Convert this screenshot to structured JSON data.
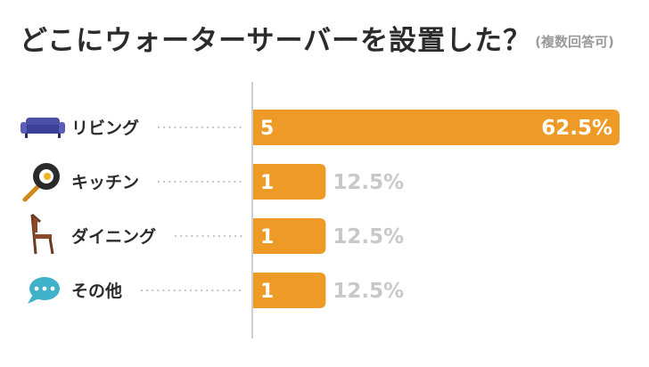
{
  "chart_data": {
    "type": "bar",
    "orientation": "horizontal",
    "title": "どこにウォーターサーバーを設置した？",
    "subtitle": "(複数回答可)",
    "categories": [
      "リビング",
      "キッチン",
      "ダイニング",
      "その他"
    ],
    "icons": [
      "sofa-icon",
      "frying-pan-icon",
      "chair-icon",
      "speech-bubble-icon"
    ],
    "values": [
      5,
      1,
      1,
      1
    ],
    "percentages": [
      "62.5%",
      "12.5%",
      "12.5%",
      "12.5%"
    ],
    "xlim": [
      0,
      5
    ],
    "colors": {
      "bar": "#ee9a26",
      "pct_outside": "#c8c8c8",
      "axis": "#cfcfcf",
      "dots": "#c4c4c4"
    }
  }
}
